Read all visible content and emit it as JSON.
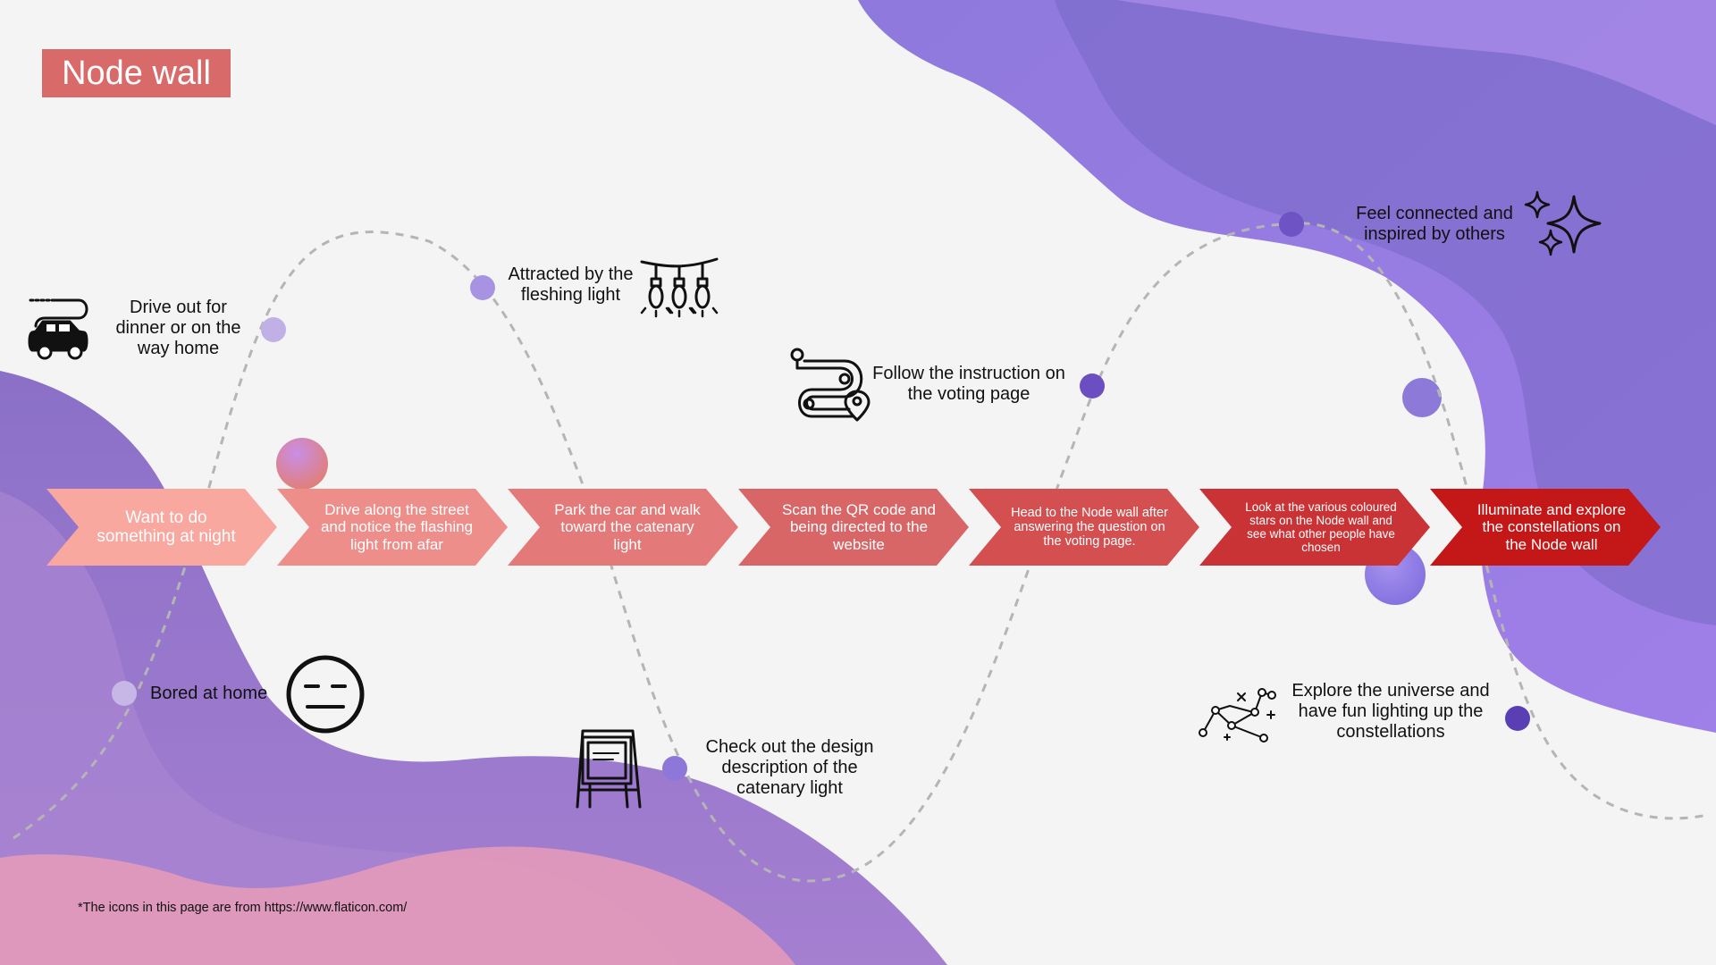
{
  "title": "Node wall",
  "footnote": "*The icons in this page are from https://www.flaticon.com/",
  "steps": [
    {
      "text": "Want to do something at night",
      "color": "#f9a8a0"
    },
    {
      "text": "Drive along the street and notice the flashing light from afar",
      "color": "#ee8e8a"
    },
    {
      "text": "Park the car and walk toward the catenary light",
      "color": "#e37978"
    },
    {
      "text": "Scan the QR code and being directed to the website",
      "color": "#d96667"
    },
    {
      "text": "Head to the Node wall after answering the question on the voting page.",
      "color": "#d34f50"
    },
    {
      "text": "Look at the various coloured stars on the Node wall and see what other people have chosen",
      "color": "#c93336"
    },
    {
      "text": "Illuminate and explore the constellations on the Node wall",
      "color": "#c41717"
    }
  ],
  "moments": [
    {
      "text": "Bored at home",
      "icon": "neutral-face-icon"
    },
    {
      "text": "Drive out for dinner or on the way home",
      "icon": "car-icon"
    },
    {
      "text": "Attracted by the fleshing light",
      "icon": "catenary-lights-icon"
    },
    {
      "text": "Check out the design description of the catenary light",
      "icon": "signboard-easel-icon"
    },
    {
      "text": "Follow the instruction on the voting page",
      "icon": "route-map-icon"
    },
    {
      "text": "Feel connected and inspired by others",
      "icon": "sparkles-icon"
    },
    {
      "text": "Explore the universe and have fun lighting up the constellations",
      "icon": "constellation-icon"
    }
  ],
  "colors": {
    "title_bg": "#d96a6a",
    "purple_light": "#a98bea",
    "purple_dark": "#6b55b5",
    "pink": "#e89ab8",
    "curve": "#b5b5b5"
  }
}
